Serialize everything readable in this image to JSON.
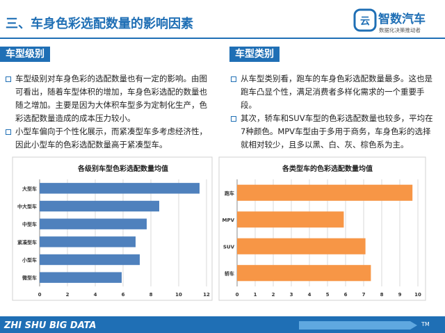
{
  "header": {
    "title": "三、车身色彩选配数量的影响因素",
    "logo_name": "智数汽车",
    "logo_slogan": "数据化决策推动者"
  },
  "sections": [
    {
      "label": "车型级别",
      "bullets": [
        "车型级别对车身色彩的选配数量也有一定的影响。由图可看出，随着车型体积的增加，车身色彩选配的数量也随之增加。主要是因为大体积车型多为定制化生产，色彩选配数量造成的成本压力较小。",
        "小型车偏向于个性化展示，而紧凑型车多考虑经济性，因此小型车的色彩选配数量高于紧凑型车。"
      ]
    },
    {
      "label": "车型类别",
      "bullets": [
        "从车型类别看，跑车的车身色彩选配数量最多。这也是跑车凸显个性，满足消费者多样化需求的一个重要手段。",
        "其次，轿车和SUV车型的色彩选配数量也较多，平均在7种颜色。MPV车型由于多用于商务，车身色彩的选择就相对较少，且多以黑、白、灰、棕色系为主。"
      ]
    }
  ],
  "chart_data": [
    {
      "type": "hbar",
      "title": "各级别车型色彩选配数量均值",
      "categories": [
        "大型车",
        "中大型车",
        "中型车",
        "紧凑型车",
        "小型车",
        "微型车"
      ],
      "values": [
        11.5,
        8.6,
        7.7,
        6.9,
        7.2,
        5.9
      ],
      "color": "#4f81bd",
      "xlim": [
        0,
        12
      ],
      "xticks": [
        0,
        2,
        4,
        6,
        8,
        10,
        12
      ],
      "grid": true
    },
    {
      "type": "hbar",
      "title": "各类型车的色彩选配数量均值",
      "categories": [
        "跑车",
        "MPV",
        "SUV",
        "轿车"
      ],
      "values": [
        9.7,
        5.9,
        7.1,
        7.4
      ],
      "color": "#f79646",
      "xlim": [
        0,
        10
      ],
      "xticks": [
        0,
        1,
        2,
        3,
        4,
        5,
        6,
        7,
        8,
        9,
        10
      ],
      "grid": true
    }
  ],
  "footer": {
    "text": "ZHI SHU BIG DATA",
    "mark": "TM"
  }
}
